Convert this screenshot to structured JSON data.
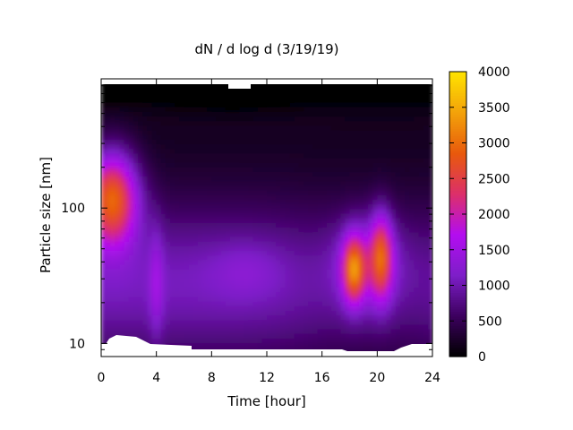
{
  "chart_data": {
    "type": "heatmap",
    "title": "dN / d log d (3/19/19)",
    "xlabel": "Time [hour]",
    "ylabel": "Particle size [nm]",
    "xlim": [
      0,
      24
    ],
    "ylim": [
      8,
      900
    ],
    "y_scale": "log",
    "x_ticks": [
      0,
      4,
      8,
      12,
      16,
      20,
      24
    ],
    "y_ticks": [
      10,
      100
    ],
    "colorbar": {
      "range": [
        0,
        4000
      ],
      "ticks": [
        0,
        500,
        1000,
        1500,
        2000,
        2500,
        3000,
        3500,
        4000
      ],
      "palette": [
        "#000000",
        "#3c005e",
        "#7d1ec8",
        "#b30df0",
        "#dc2f6a",
        "#e8590c",
        "#f3a20a",
        "#ffe300"
      ]
    },
    "features": [
      {
        "hour": 0.8,
        "size_nm": 120,
        "value": 3000
      },
      {
        "hour": 4.0,
        "size_nm": 30,
        "value": 1400
      },
      {
        "hour": 18.3,
        "size_nm": 35,
        "value": 3300
      },
      {
        "hour": 20.3,
        "size_nm": 45,
        "value": 2900
      },
      {
        "hour": 10.5,
        "size_nm": 35,
        "value": 1150
      }
    ],
    "grid": false,
    "legend": "colorbar-right"
  }
}
